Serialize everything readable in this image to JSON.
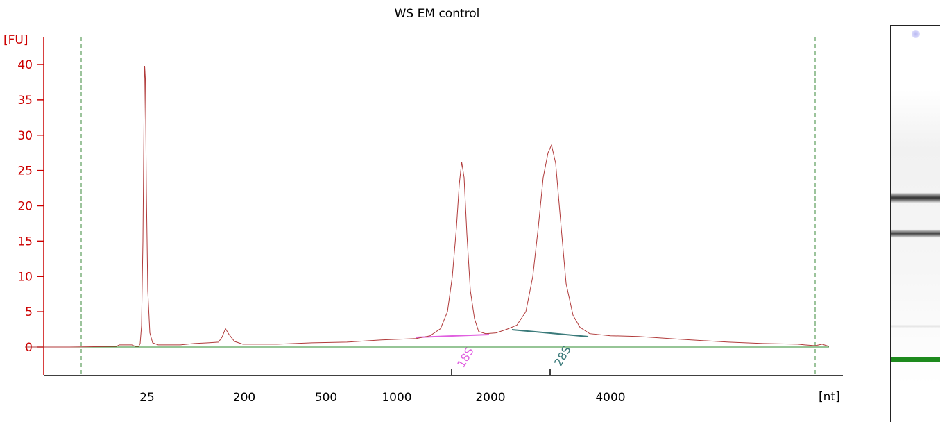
{
  "chart_data": {
    "type": "line",
    "title": "WS EM control",
    "ylabel": "[FU]",
    "xlabel": "[nt]",
    "ylim": [
      -4,
      44
    ],
    "y_ticks": [
      0,
      5,
      10,
      15,
      20,
      25,
      30,
      35,
      40
    ],
    "y_tick_labels": [
      "0",
      "5",
      "10",
      "15",
      "20",
      "25",
      "30",
      "35",
      "40"
    ],
    "x_tick_labels": [
      "25",
      "200",
      "500",
      "1000",
      "2000",
      "4000"
    ],
    "peak_labels": [
      "18S",
      "28S"
    ],
    "grid": false,
    "legend": "none",
    "colors": {
      "trace": "#b03a3a",
      "axis_y": "#cc0000",
      "axis_x": "#000000",
      "baseline": "#2e8b2e",
      "marker_lines": "#3a8a3a",
      "peak_18s": "#e060e0",
      "peak_28s": "#3a7a7a"
    },
    "series": [
      {
        "values": [
          [
            36,
            0
          ],
          [
            100,
            0
          ],
          [
            168,
            0.1
          ],
          [
            172,
            0.3
          ],
          [
            190,
            0.3
          ],
          [
            195,
            0.1
          ],
          [
            200,
            0.1
          ],
          [
            202,
            0.5
          ],
          [
            204,
            3
          ],
          [
            206,
            15
          ],
          [
            207.5,
            32
          ],
          [
            208.5,
            39.8
          ],
          [
            209.5,
            38
          ],
          [
            211,
            22
          ],
          [
            213,
            8
          ],
          [
            216,
            2
          ],
          [
            220,
            0.6
          ],
          [
            228,
            0.3
          ],
          [
            260,
            0.3
          ],
          [
            280,
            0.5
          ],
          [
            300,
            0.6
          ],
          [
            315,
            0.7
          ],
          [
            320,
            1.4
          ],
          [
            325,
            2.6
          ],
          [
            330,
            1.8
          ],
          [
            338,
            0.8
          ],
          [
            350,
            0.4
          ],
          [
            400,
            0.4
          ],
          [
            450,
            0.6
          ],
          [
            500,
            0.7
          ],
          [
            550,
            1.0
          ],
          [
            600,
            1.2
          ],
          [
            620,
            1.6
          ],
          [
            635,
            2.6
          ],
          [
            645,
            5
          ],
          [
            652,
            10
          ],
          [
            658,
            17
          ],
          [
            662,
            23
          ],
          [
            665.5,
            26.2
          ],
          [
            669,
            24
          ],
          [
            673,
            16
          ],
          [
            678,
            8
          ],
          [
            684,
            4
          ],
          [
            690,
            2.2
          ],
          [
            700,
            1.9
          ],
          [
            715,
            2.0
          ],
          [
            730,
            2.5
          ],
          [
            745,
            3.1
          ],
          [
            758,
            5
          ],
          [
            768,
            10
          ],
          [
            776,
            17
          ],
          [
            783,
            24
          ],
          [
            790,
            27.5
          ],
          [
            795,
            28.6
          ],
          [
            801,
            26
          ],
          [
            808,
            18
          ],
          [
            816,
            9
          ],
          [
            826,
            4.5
          ],
          [
            836,
            2.8
          ],
          [
            850,
            1.9
          ],
          [
            880,
            1.6
          ],
          [
            920,
            1.5
          ],
          [
            980,
            1.1
          ],
          [
            1050,
            0.7
          ],
          [
            1100,
            0.5
          ],
          [
            1150,
            0.4
          ],
          [
            1160,
            0.3
          ],
          [
            1175,
            0.2
          ],
          [
            1185,
            0.4
          ],
          [
            1195,
            0.1
          ]
        ]
      }
    ]
  }
}
